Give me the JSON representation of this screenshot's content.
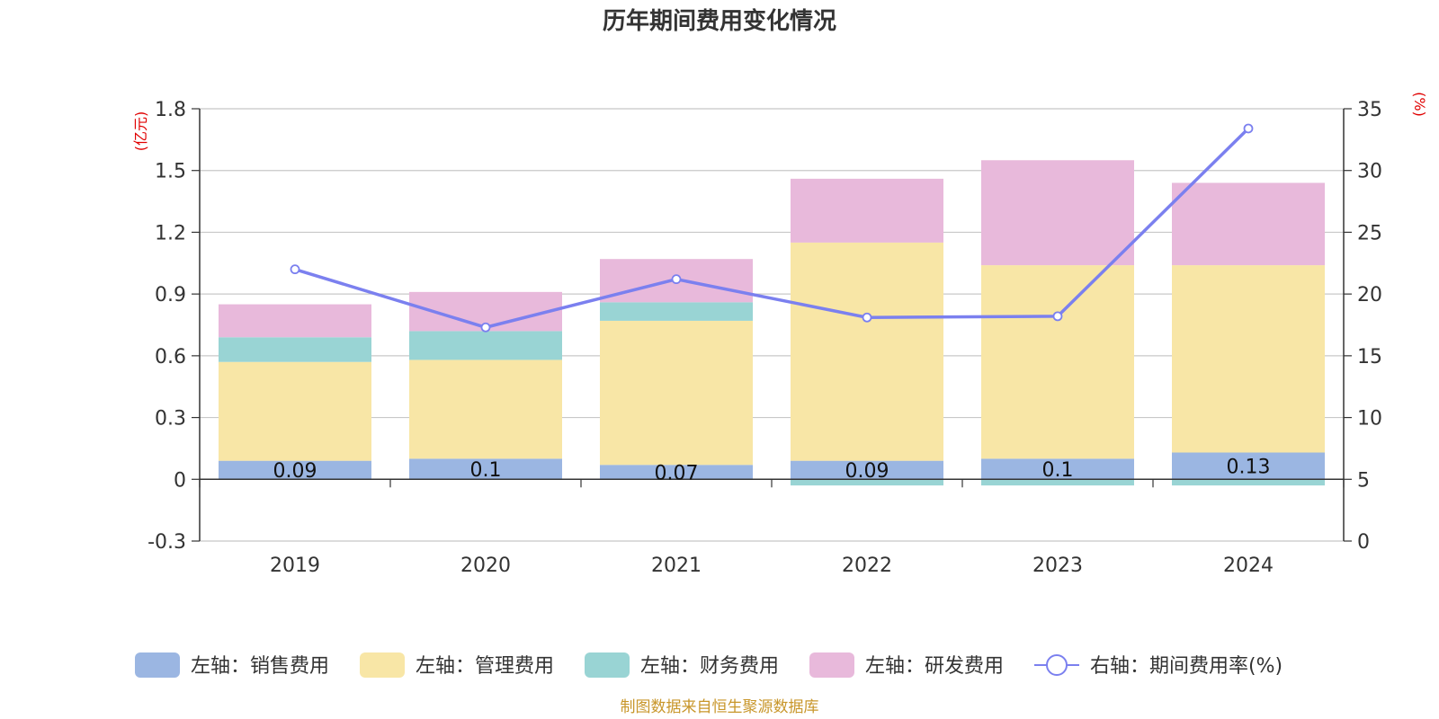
{
  "chart_data": {
    "type": "bar",
    "title": "历年期间费用变化情况",
    "categories": [
      "2019",
      "2020",
      "2021",
      "2022",
      "2023",
      "2024"
    ],
    "left_axis": {
      "unit": "(亿元)",
      "ylim": [
        -0.3,
        1.8
      ],
      "ticks": [
        "1.8",
        "1.5",
        "1.2",
        "0.9",
        "0.6",
        "0.3",
        "0",
        "-0.3"
      ],
      "tick_values": [
        1.8,
        1.5,
        1.2,
        0.9,
        0.6,
        0.3,
        0,
        -0.3
      ]
    },
    "right_axis": {
      "unit": "(%)",
      "ylim": [
        0,
        35
      ],
      "ticks": [
        "35",
        "30",
        "25",
        "20",
        "15",
        "10",
        "5",
        "0"
      ],
      "tick_values": [
        35,
        30,
        25,
        20,
        15,
        10,
        5,
        0
      ]
    },
    "series": [
      {
        "name": "左轴：销售费用",
        "axis": "left",
        "kind": "bar",
        "color": "#9bb6e2",
        "values": [
          0.09,
          0.1,
          0.07,
          0.09,
          0.1,
          0.13
        ],
        "labels": [
          "0.09",
          "0.1",
          "0.07",
          "0.09",
          "0.1",
          "0.13"
        ]
      },
      {
        "name": "左轴：管理费用",
        "axis": "left",
        "kind": "bar",
        "color": "#f8e6a6",
        "values": [
          0.48,
          0.48,
          0.7,
          1.06,
          0.94,
          0.91
        ]
      },
      {
        "name": "左轴：财务费用",
        "axis": "left",
        "kind": "bar",
        "color": "#99d4d4",
        "values": [
          0.12,
          0.14,
          0.09,
          -0.03,
          -0.03,
          -0.03
        ]
      },
      {
        "name": "左轴：研发费用",
        "axis": "left",
        "kind": "bar",
        "color": "#e8b9db",
        "values": [
          0.16,
          0.19,
          0.21,
          0.31,
          0.51,
          0.4
        ]
      },
      {
        "name": "右轴：期间费用率(%)",
        "axis": "right",
        "kind": "line",
        "color": "#7b80ef",
        "values": [
          22.0,
          17.3,
          21.2,
          18.1,
          18.2,
          33.4
        ]
      }
    ],
    "grid": true,
    "legend_position": "bottom"
  },
  "source_note": "制图数据来自恒生聚源数据库"
}
